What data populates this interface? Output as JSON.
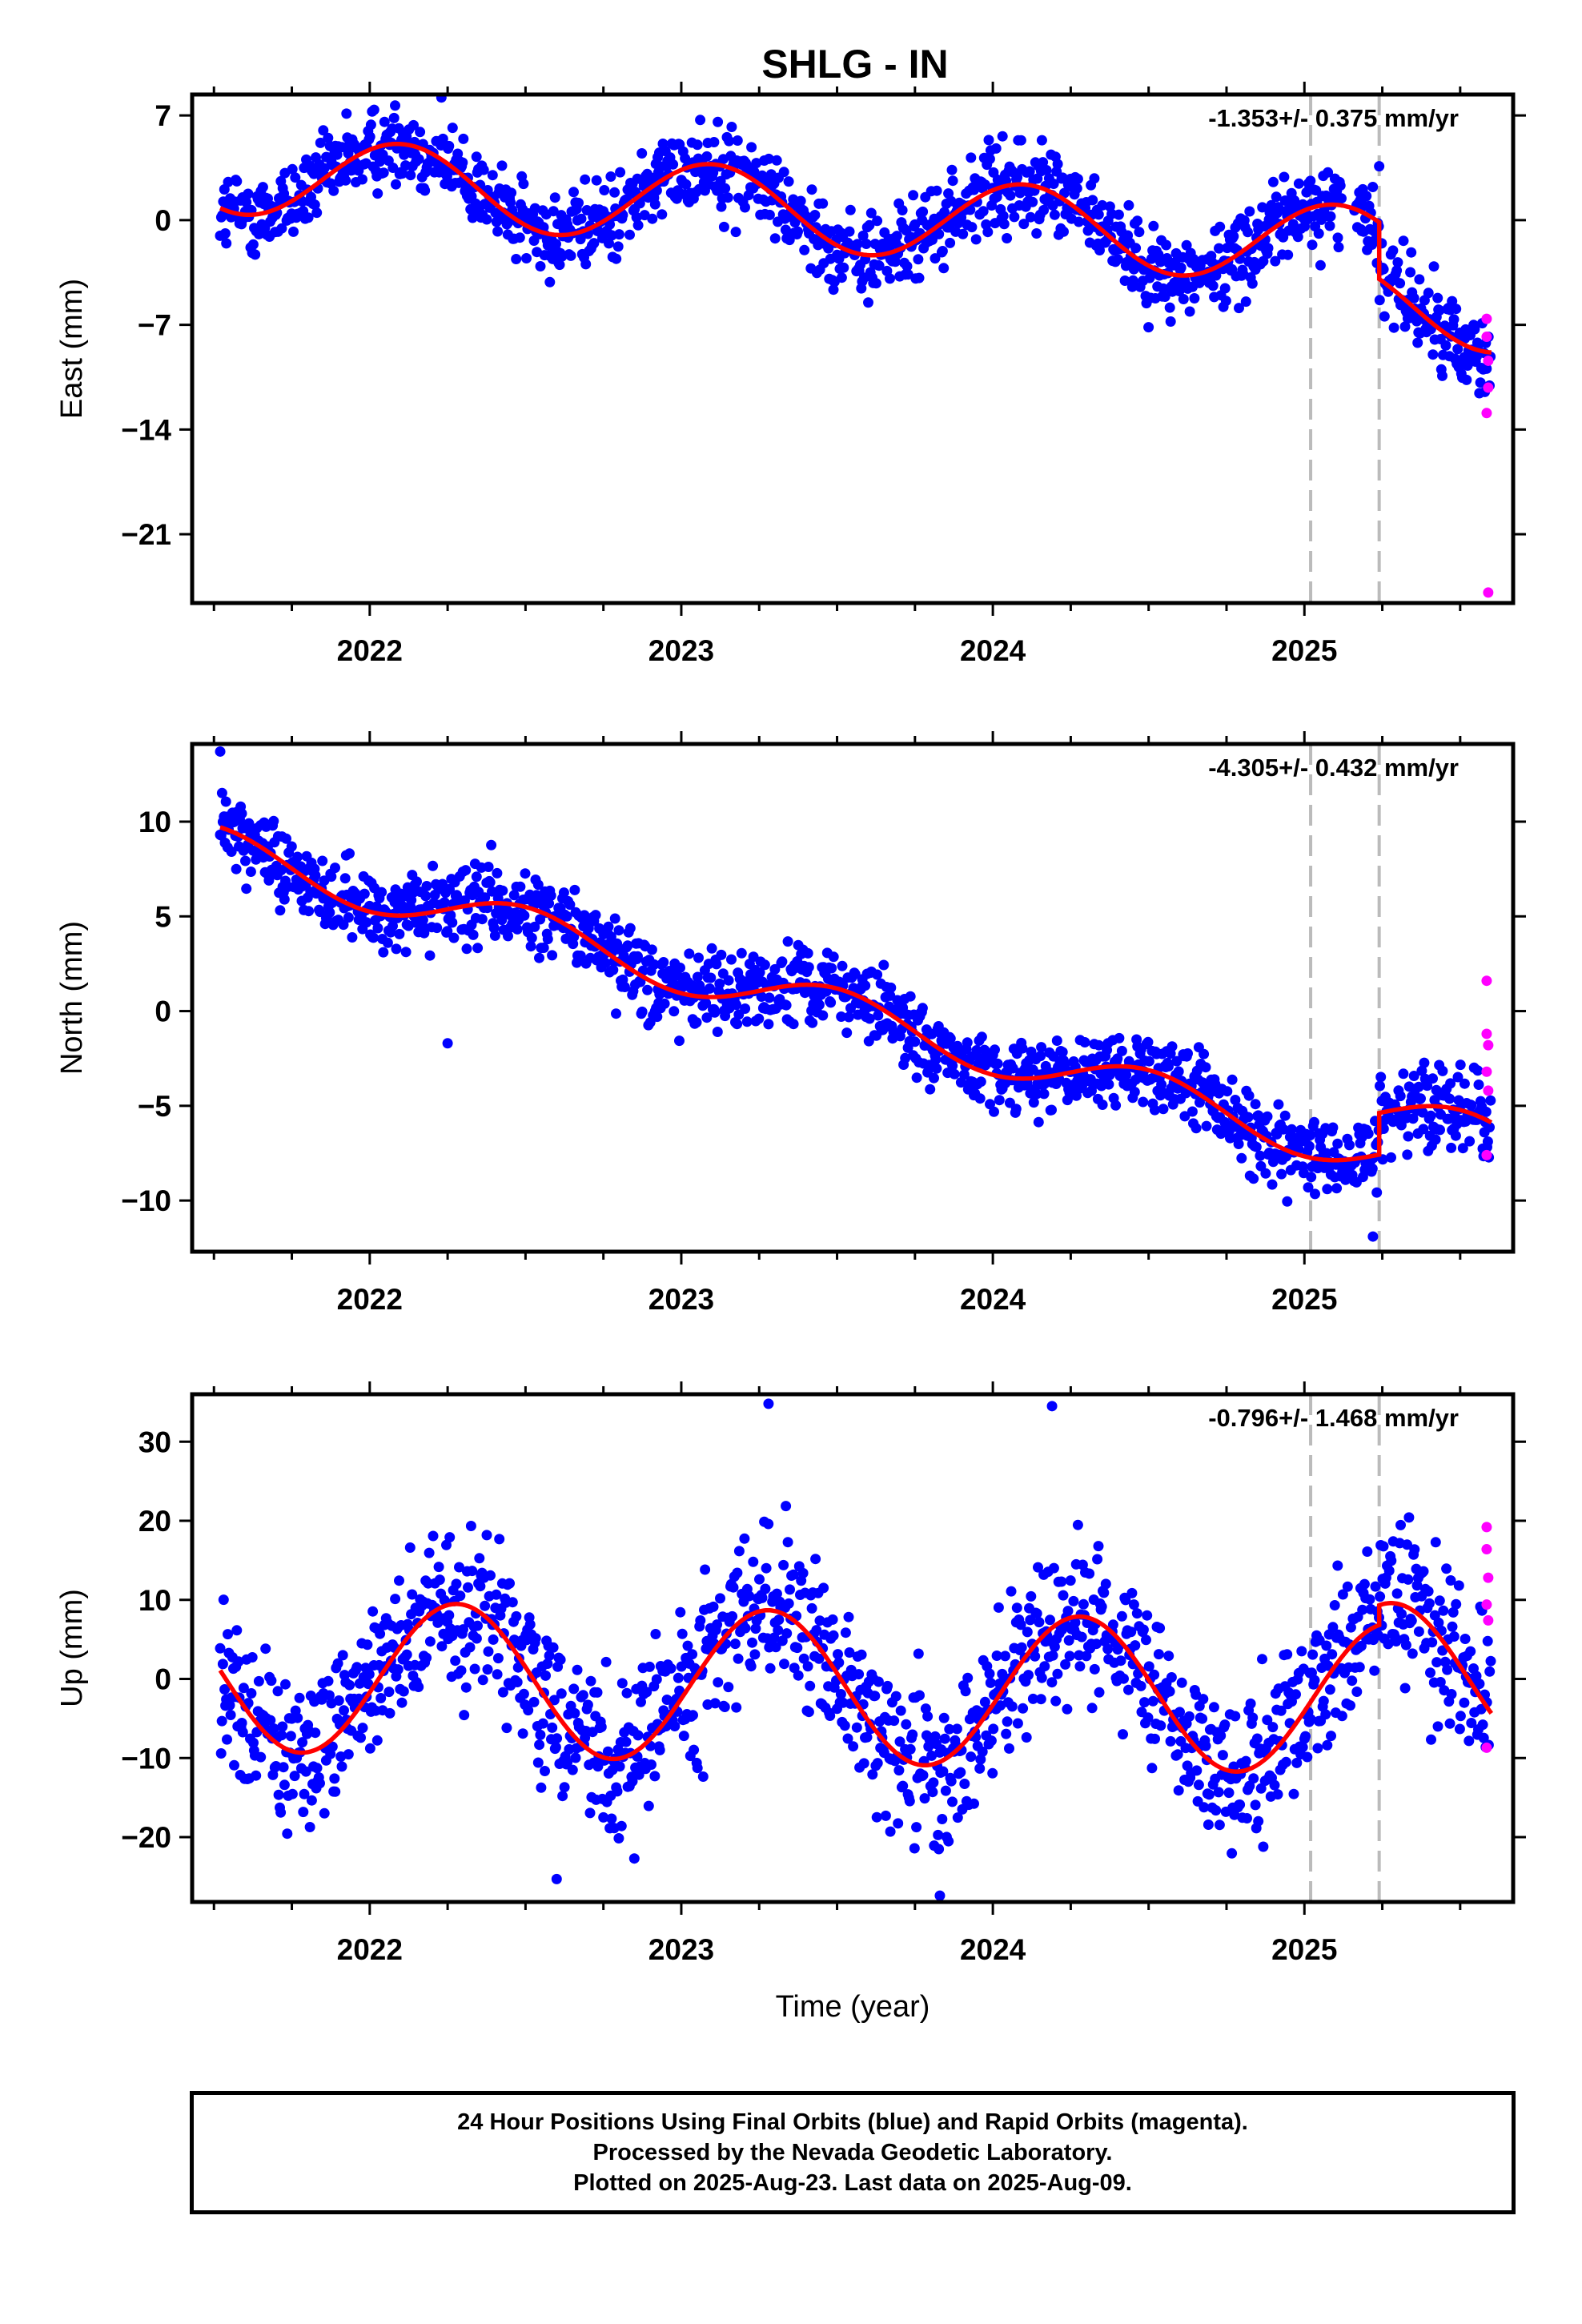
{
  "figure": {
    "title": "SHLG - IN",
    "footer": [
      "24 Hour Positions Using Final Orbits (blue) and Rapid Orbits (magenta).",
      "Processed by the Nevada Geodetic Laboratory.",
      "Plotted on 2025-Aug-23. Last data on 2025-Aug-09."
    ]
  },
  "colors": {
    "final_orbits": "#0000ff",
    "rapid_orbits": "#ff00ff",
    "model_fit": "#ff0000",
    "event_lines": "#bbbbbb"
  },
  "chart_data": [
    {
      "type": "scatter",
      "component": "East",
      "ylabel": "East (mm)",
      "xlabel": "",
      "rate_label": "-1.353+/- 0.375 mm/yr",
      "xlim": [
        2021.43,
        2025.67
      ],
      "ylim": [
        -25.6,
        8.4
      ],
      "yticks": [
        7,
        0,
        -7,
        -14,
        -21
      ],
      "xticks": [
        2022,
        2023,
        2024,
        2025
      ],
      "event_lines": [
        2025.02,
        2025.24
      ],
      "start": 2021.52,
      "end": 2025.6,
      "fit": {
        "offset": 3.2,
        "rate": -1.353,
        "annual_amp": 2.7,
        "annual_phase": 2022.1,
        "step_time": 2025.24,
        "step": -3.8,
        "noise": 1.35
      },
      "rapid": [
        [
          2025.585,
          -6.6
        ],
        [
          2025.585,
          -7.8
        ],
        [
          2025.59,
          -9.4
        ],
        [
          2025.59,
          -11.2
        ],
        [
          2025.585,
          -12.9
        ],
        [
          2025.59,
          -24.9
        ]
      ],
      "outliers": [
        [
          2022.23,
          8.2
        ],
        [
          2025.24,
          3.6
        ],
        [
          2024.74,
          -5.8
        ]
      ]
    },
    {
      "type": "scatter",
      "component": "North",
      "ylabel": "North (mm)",
      "xlabel": "",
      "rate_label": "-4.305+/- 0.432 mm/yr",
      "xlim": [
        2021.43,
        2025.67
      ],
      "ylim": [
        -12.7,
        14.1
      ],
      "yticks": [
        10,
        5,
        0,
        -5,
        -10
      ],
      "xticks": [
        2022,
        2023,
        2024,
        2025
      ],
      "event_lines": [
        2025.02,
        2025.24
      ],
      "start": 2021.52,
      "end": 2025.6,
      "fit": {
        "offset": 8.6,
        "rate": -4.305,
        "annual_amp": 1.2,
        "annual_phase": 2022.5,
        "step_time": 2025.24,
        "step": 2.2,
        "noise": 1.0
      },
      "rapid": [
        [
          2025.585,
          1.6
        ],
        [
          2025.585,
          -1.2
        ],
        [
          2025.59,
          -1.8
        ],
        [
          2025.585,
          -3.2
        ],
        [
          2025.59,
          -4.2
        ],
        [
          2025.585,
          -7.6
        ]
      ],
      "outliers": [
        [
          2021.52,
          13.7
        ],
        [
          2022.25,
          -1.7
        ],
        [
          2025.22,
          -11.9
        ]
      ]
    },
    {
      "type": "scatter",
      "component": "Up",
      "ylabel": "Up (mm)",
      "xlabel": "Time (year)",
      "rate_label": "-0.796+/- 1.468 mm/yr",
      "xlim": [
        2021.43,
        2025.67
      ],
      "ylim": [
        -28.2,
        36.0
      ],
      "yticks": [
        30,
        20,
        10,
        0,
        -10,
        -20
      ],
      "xticks": [
        2022,
        2023,
        2024,
        2025
      ],
      "event_lines": [
        2025.02,
        2025.24
      ],
      "start": 2021.52,
      "end": 2025.6,
      "fit": {
        "offset": 0.5,
        "rate": -0.796,
        "annual_amp": 9.6,
        "annual_phase": 2022.28,
        "step_time": 2025.24,
        "step": 2.5,
        "noise": 4.8
      },
      "rapid": [
        [
          2025.585,
          19.2
        ],
        [
          2025.585,
          16.4
        ],
        [
          2025.59,
          12.8
        ],
        [
          2025.585,
          9.4
        ],
        [
          2025.59,
          7.4
        ],
        [
          2025.585,
          -8.7
        ]
      ],
      "outliers": [
        [
          2023.28,
          34.8
        ],
        [
          2024.19,
          34.5
        ],
        [
          2023.83,
          -27.4
        ],
        [
          2022.6,
          -25.3
        ]
      ]
    }
  ]
}
